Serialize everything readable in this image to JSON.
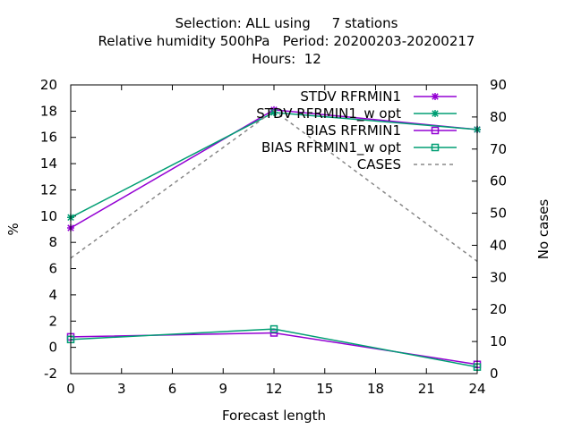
{
  "chart_data": {
    "type": "line",
    "title_lines": [
      "Selection: ALL using     7 stations",
      "Relative humidity 500hPa   Period: 20200203-20200217",
      "Hours:  12"
    ],
    "xlabel": "Forecast length",
    "ylabel": "%",
    "y2label": "No cases",
    "x": [
      0,
      12,
      24
    ],
    "xlim": [
      0,
      24
    ],
    "xticks": [
      0,
      3,
      6,
      9,
      12,
      15,
      18,
      21,
      24
    ],
    "ylim": [
      -2,
      20
    ],
    "yticks": [
      -2,
      0,
      2,
      4,
      6,
      8,
      10,
      12,
      14,
      16,
      18,
      20
    ],
    "y2lim": [
      0,
      90
    ],
    "y2ticks": [
      0,
      10,
      20,
      30,
      40,
      50,
      60,
      70,
      80,
      90
    ],
    "grid": false,
    "legend_position": "top-right",
    "series": [
      {
        "name": "STDV RFRMIN1",
        "marker": "star",
        "color": "#9400d3",
        "axis": "y1",
        "values": [
          9.1,
          18.1,
          16.6
        ]
      },
      {
        "name": "STDV RFRMIN1_w opt",
        "marker": "star",
        "color": "#009e73",
        "axis": "y1",
        "values": [
          9.9,
          17.9,
          16.6
        ]
      },
      {
        "name": "BIAS RFRMIN1",
        "marker": "square",
        "color": "#9400d3",
        "axis": "y1",
        "values": [
          0.8,
          1.1,
          -1.3
        ]
      },
      {
        "name": "BIAS RFRMIN1_w opt",
        "marker": "square",
        "color": "#009e73",
        "axis": "y1",
        "values": [
          0.6,
          1.4,
          -1.5
        ]
      },
      {
        "name": "CASES",
        "marker": "none",
        "dashed": true,
        "color": "#888888",
        "axis": "y2",
        "values": [
          36,
          82,
          35
        ]
      }
    ]
  }
}
